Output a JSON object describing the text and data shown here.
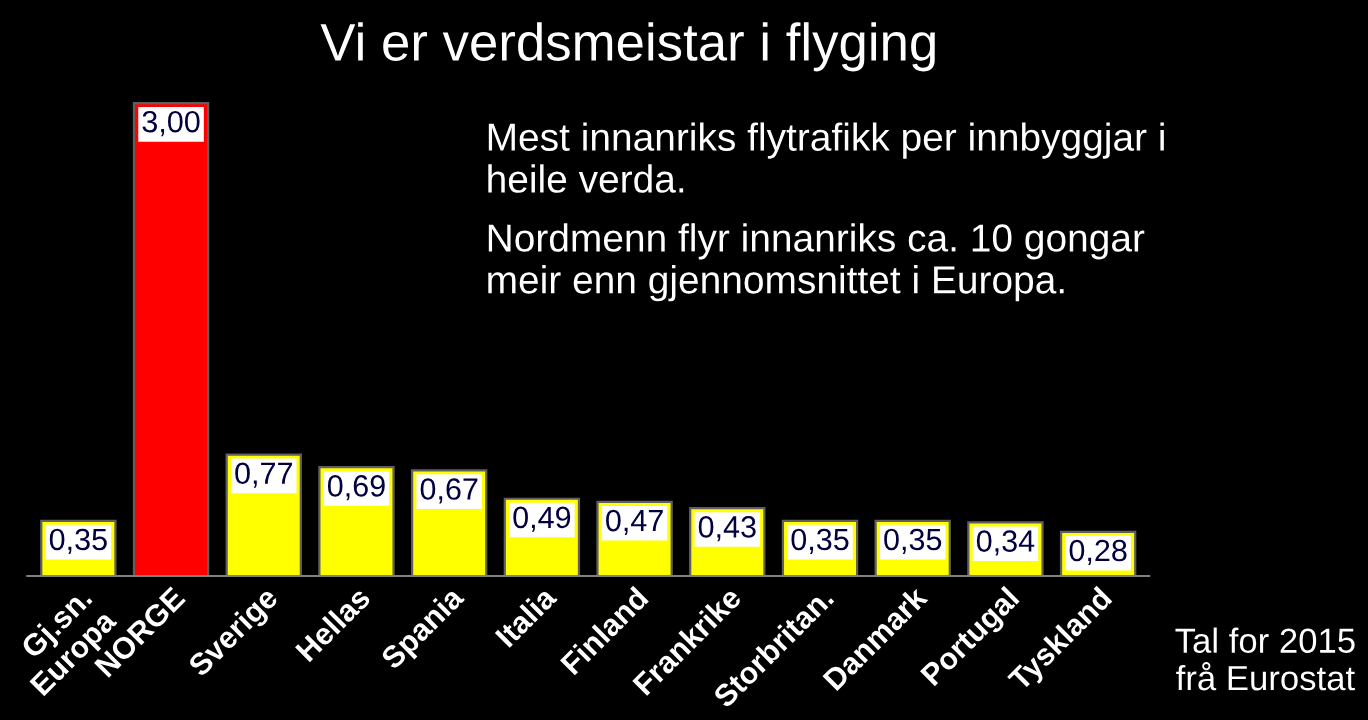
{
  "chart_data": {
    "type": "bar",
    "title": "Vi er verdsmeistar i flyging",
    "categories": [
      "Gj.sn.\nEuropa",
      "NORGE",
      "Sverige",
      "Hellas",
      "Spania",
      "Italia",
      "Finland",
      "Frankrike",
      "Storbritan.",
      "Danmark",
      "Portugal",
      "Tyskland"
    ],
    "values": [
      0.35,
      3.0,
      0.77,
      0.69,
      0.67,
      0.49,
      0.47,
      0.43,
      0.35,
      0.35,
      0.34,
      0.28
    ],
    "value_labels": [
      "0,35",
      "3,00",
      "0,77",
      "0,69",
      "0,67",
      "0,49",
      "0,47",
      "0,43",
      "0,35",
      "0,35",
      "0,34",
      "0,28"
    ],
    "colors": [
      "#ffff00",
      "#ff0000",
      "#ffff00",
      "#ffff00",
      "#ffff00",
      "#ffff00",
      "#ffff00",
      "#ffff00",
      "#ffff00",
      "#ffff00",
      "#ffff00",
      "#ffff00"
    ],
    "annotations": [
      "Mest innanriks flytrafikk per innbyggjar i\nheile verda.",
      "Nordmenn flyr innanriks ca. 10 gongar\nmeir enn gjennomsnittet i Europa.",
      "Tal for 2015\nfrå Eurostat"
    ]
  }
}
